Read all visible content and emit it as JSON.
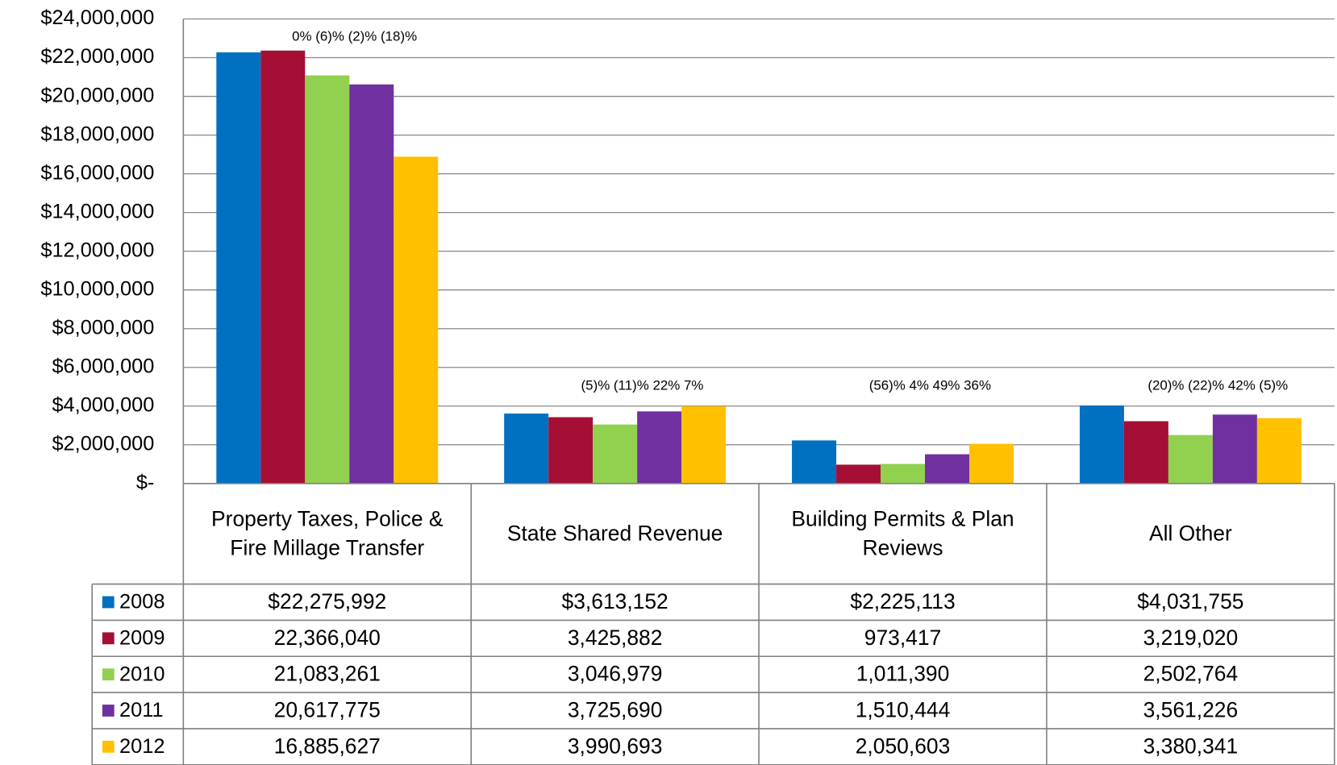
{
  "chart_data": {
    "type": "bar",
    "categories": [
      "Property Taxes, Police & Fire Millage Transfer",
      "State Shared Revenue",
      "Building Permits & Plan Reviews",
      "All Other"
    ],
    "series": [
      {
        "name": "2008",
        "color": "#0070c0",
        "values": [
          22275992,
          3613152,
          2225113,
          4031755
        ],
        "value_labels": [
          "$22,275,992",
          "$3,613,152",
          "$2,225,113",
          "$4,031,755"
        ]
      },
      {
        "name": "2009",
        "color": "#a50f35",
        "values": [
          22366040,
          3425882,
          973417,
          3219020
        ],
        "value_labels": [
          "22,366,040",
          "3,425,882",
          "973,417",
          "3,219,020"
        ]
      },
      {
        "name": "2010",
        "color": "#92d050",
        "values": [
          21083261,
          3046979,
          1011390,
          2502764
        ],
        "value_labels": [
          "21,083,261",
          "3,046,979",
          "1,011,390",
          "2,502,764"
        ]
      },
      {
        "name": "2011",
        "color": "#7030a0",
        "values": [
          20617775,
          3725690,
          1510444,
          3561226
        ],
        "value_labels": [
          "20,617,775",
          "3,725,690",
          "1,510,444",
          "3,561,226"
        ]
      },
      {
        "name": "2012",
        "color": "#ffc000",
        "values": [
          16885627,
          3990693,
          2050603,
          3380341
        ],
        "value_labels": [
          "16,885,627",
          "3,990,693",
          "2,050,603",
          "3,380,341"
        ]
      }
    ],
    "annotations": [
      "0% (6)% (2)% (18)%",
      "(5)% (11)% 22% 7%",
      "(56)% 4% 49% 36%",
      "(20)% (22)% 42% (5)%"
    ],
    "ylim": [
      0,
      24000000
    ],
    "yticks": [
      {
        "value": 0,
        "label": "$-"
      },
      {
        "value": 2000000,
        "label": "$2,000,000"
      },
      {
        "value": 4000000,
        "label": "$4,000,000"
      },
      {
        "value": 6000000,
        "label": "$6,000,000"
      },
      {
        "value": 8000000,
        "label": "$8,000,000"
      },
      {
        "value": 10000000,
        "label": "$10,000,000"
      },
      {
        "value": 12000000,
        "label": "$12,000,000"
      },
      {
        "value": 14000000,
        "label": "$14,000,000"
      },
      {
        "value": 16000000,
        "label": "$16,000,000"
      },
      {
        "value": 18000000,
        "label": "$18,000,000"
      },
      {
        "value": 20000000,
        "label": "$20,000,000"
      },
      {
        "value": 22000000,
        "label": "$22,000,000"
      },
      {
        "value": 24000000,
        "label": "$24,000,000"
      }
    ],
    "grid": true
  }
}
